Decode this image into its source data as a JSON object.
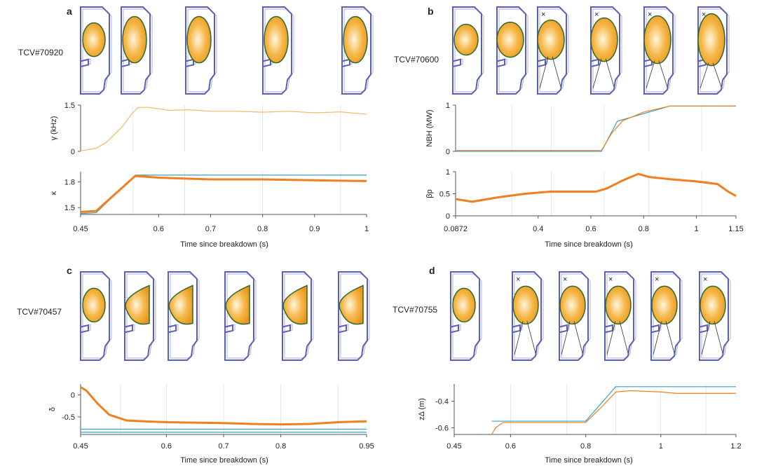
{
  "colors": {
    "trace": "#f07f1e",
    "trace_light": "#f4b76a",
    "target": "#3aa0c8",
    "vessel": "#5a5fb8",
    "plasma_edge": "#2f6a2a",
    "xpoint": "#e0334b"
  },
  "chart_data": [
    {
      "id": "a",
      "type": "line",
      "shot": "TCV#70920",
      "xlabel": "Time since breakdown (s)",
      "xlim": [
        0.45,
        1
      ],
      "xticks": [
        0.45,
        0.6,
        0.7,
        0.8,
        0.9,
        1
      ],
      "xtick_labels": [
        "0.45",
        "0.6",
        "0.7",
        "0.8",
        "0.9",
        "1"
      ],
      "snapshots": [
        0.45,
        0.55,
        0.65,
        0.8,
        0.95
      ],
      "subplots": [
        {
          "ylabel": "γ (kHz)",
          "ylim": [
            0,
            1.5
          ],
          "yticks": [
            0,
            1.5
          ],
          "ytick_labels": [
            "0",
            "1.5"
          ],
          "series": [
            {
              "name": "measured",
              "x": [
                0.45,
                0.48,
                0.5,
                0.53,
                0.55,
                0.56,
                0.58,
                0.62,
                0.66,
                0.7,
                0.75,
                0.8,
                0.85,
                0.9,
                0.95,
                0.99,
                1
              ],
              "y": [
                0.02,
                0.1,
                0.3,
                0.8,
                1.25,
                1.42,
                1.43,
                1.33,
                1.35,
                1.3,
                1.3,
                1.27,
                1.3,
                1.25,
                1.28,
                1.22,
                1.2
              ]
            }
          ]
        },
        {
          "ylabel": "κ",
          "ylim": [
            1.42,
            1.92
          ],
          "yticks": [
            1.5,
            1.8
          ],
          "ytick_labels": [
            "1.5",
            "1.8"
          ],
          "series": [
            {
              "name": "target",
              "x": [
                0.45,
                0.48,
                0.555,
                1
              ],
              "y": [
                1.43,
                1.44,
                1.88,
                1.88
              ]
            },
            {
              "name": "measured",
              "x": [
                0.45,
                0.48,
                0.555,
                0.6,
                0.7,
                0.8,
                0.9,
                1
              ],
              "y": [
                1.45,
                1.46,
                1.87,
                1.85,
                1.83,
                1.83,
                1.82,
                1.81
              ]
            }
          ]
        }
      ]
    },
    {
      "id": "b",
      "type": "line",
      "shot": "TCV#70600",
      "xlabel": "Time since breakdown (s)",
      "xlim": [
        0.0872,
        1.15
      ],
      "xticks": [
        0.0872,
        0.4,
        0.6,
        0.8,
        1,
        1.15
      ],
      "xtick_labels": [
        "0.0872",
        "0.4",
        "0.6",
        "0.8",
        "1",
        "1.15"
      ],
      "snapshots": [
        0.0872,
        0.3,
        0.45,
        0.65,
        0.82,
        1.02
      ],
      "subplots": [
        {
          "ylabel": "NBH (MW)",
          "ylim": [
            0,
            1
          ],
          "yticks": [
            0,
            1
          ],
          "ytick_labels": [
            "0",
            "1"
          ],
          "series": [
            {
              "name": "target",
              "x": [
                0.0872,
                0.64,
                0.7,
                0.9,
                1.15
              ],
              "y": [
                0,
                0,
                0.65,
                0.98,
                0.98
              ]
            },
            {
              "name": "measured",
              "x": [
                0.0872,
                0.64,
                0.68,
                0.72,
                0.8,
                0.9,
                1.15
              ],
              "y": [
                0.02,
                0.02,
                0.4,
                0.66,
                0.85,
                0.98,
                0.98
              ]
            }
          ]
        },
        {
          "ylabel": "βp",
          "ylim": [
            0,
            1
          ],
          "yticks": [
            0,
            0.5,
            1
          ],
          "ytick_labels": [
            "0",
            "0.5",
            "1"
          ],
          "series": [
            {
              "name": "measured",
              "x": [
                0.0872,
                0.15,
                0.25,
                0.35,
                0.45,
                0.55,
                0.62,
                0.66,
                0.72,
                0.78,
                0.82,
                0.9,
                1,
                1.08,
                1.12,
                1.15
              ],
              "y": [
                0.38,
                0.32,
                0.42,
                0.5,
                0.55,
                0.55,
                0.55,
                0.62,
                0.8,
                0.95,
                0.88,
                0.83,
                0.78,
                0.72,
                0.55,
                0.45
              ]
            }
          ]
        }
      ]
    },
    {
      "id": "c",
      "type": "line",
      "shot": "TCV#70457",
      "xlabel": "Time since breakdown (s)",
      "xlim": [
        0.45,
        0.95
      ],
      "xticks": [
        0.45,
        0.6,
        0.7,
        0.8,
        0.95
      ],
      "xtick_labels": [
        "0.45",
        "0.6",
        "0.7",
        "0.8",
        "0.95"
      ],
      "snapshots": [
        0.45,
        0.52,
        0.6,
        0.7,
        0.8,
        0.9
      ],
      "subplots": [
        {
          "ylabel": "δ",
          "ylim": [
            -0.9,
            0.25
          ],
          "yticks": [
            0,
            -0.5
          ],
          "ytick_labels": [
            "0",
            "-0.5"
          ],
          "series": [
            {
              "name": "target",
              "x": [
                0.45,
                0.95
              ],
              "y": [
                -0.78,
                -0.78
              ]
            },
            {
              "name": "target2",
              "x": [
                0.45,
                0.95
              ],
              "y": [
                -0.85,
                -0.85
              ]
            },
            {
              "name": "measured",
              "x": [
                0.45,
                0.46,
                0.48,
                0.5,
                0.53,
                0.56,
                0.6,
                0.65,
                0.7,
                0.75,
                0.8,
                0.85,
                0.9,
                0.95
              ],
              "y": [
                0.18,
                0.1,
                -0.2,
                -0.45,
                -0.58,
                -0.6,
                -0.62,
                -0.63,
                -0.64,
                -0.66,
                -0.67,
                -0.66,
                -0.62,
                -0.6
              ]
            }
          ]
        }
      ]
    },
    {
      "id": "d",
      "type": "line",
      "shot": "TCV#70755",
      "xlabel": "Time since breakdown (s)",
      "xlim": [
        0.45,
        1.2
      ],
      "xticks": [
        0.45,
        0.6,
        0.8,
        1,
        1.2
      ],
      "xtick_labels": [
        "0.45",
        "0.6",
        "0.8",
        "1",
        "1.2"
      ],
      "snapshots": [
        0.45,
        0.6,
        0.75,
        0.88,
        1.0,
        1.12
      ],
      "subplots": [
        {
          "ylabel": "zΔ (m)",
          "ylim": [
            -0.65,
            -0.27
          ],
          "yticks": [
            -0.4,
            -0.6
          ],
          "ytick_labels": [
            "-0.4",
            "-0.6"
          ],
          "series": [
            {
              "name": "target",
              "x": [
                0.55,
                0.8,
                0.88,
                1.2
              ],
              "y": [
                -0.55,
                -0.55,
                -0.29,
                -0.29
              ]
            },
            {
              "name": "measured",
              "x": [
                0.55,
                0.56,
                0.58,
                0.8,
                0.84,
                0.88,
                0.92,
                1.0,
                1.04,
                1.2
              ],
              "y": [
                -0.65,
                -0.6,
                -0.56,
                -0.56,
                -0.45,
                -0.33,
                -0.32,
                -0.33,
                -0.34,
                -0.34
              ]
            }
          ]
        }
      ]
    }
  ]
}
